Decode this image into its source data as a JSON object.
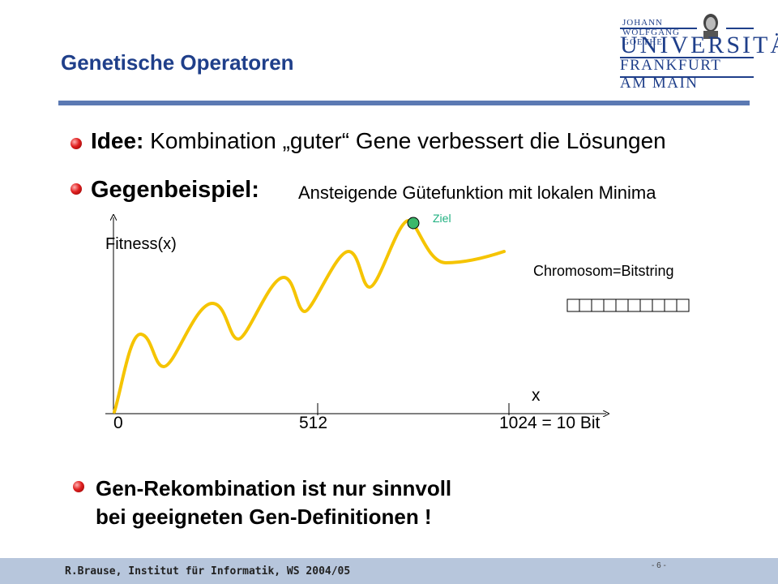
{
  "header": {
    "title": "Genetische Operatoren",
    "logo": {
      "line1": "JOHANN WOLFGANG GOETHE",
      "line2": "UNIVERSITÄT",
      "line3": "FRANKFURT AM MAIN"
    }
  },
  "bullets": {
    "idee_label": "Idee:",
    "idee_text": "Kombination „guter“ Gene verbessert die Lösungen",
    "gegen_label": "Gegenbeispiel:",
    "gegen_text": "Ansteigende Gütefunktion mit lokalen Minima"
  },
  "figure": {
    "y_label": "Fitness(x)",
    "x_label": "x",
    "ticks": [
      "0",
      "512",
      "1024 = 10 Bit"
    ],
    "goal_label": "Ziel",
    "chromosome_label": "Chromosom=Bitstring",
    "bit_cells": 10,
    "curve_color": "#f5c400",
    "goal_color": "#3cb86a"
  },
  "conclusion": {
    "line1": "Gen-Rekombination ist nur sinnvoll",
    "line2": "bei geeigneten Gen-Definitionen !"
  },
  "footer": {
    "author": "R.Brause, Institut für Informatik, WS 2004/05",
    "page": "- 6 -"
  },
  "colors": {
    "title": "#1f3f8a",
    "rule": "#5b79b3",
    "footer_bg": "#b7c6dc"
  }
}
